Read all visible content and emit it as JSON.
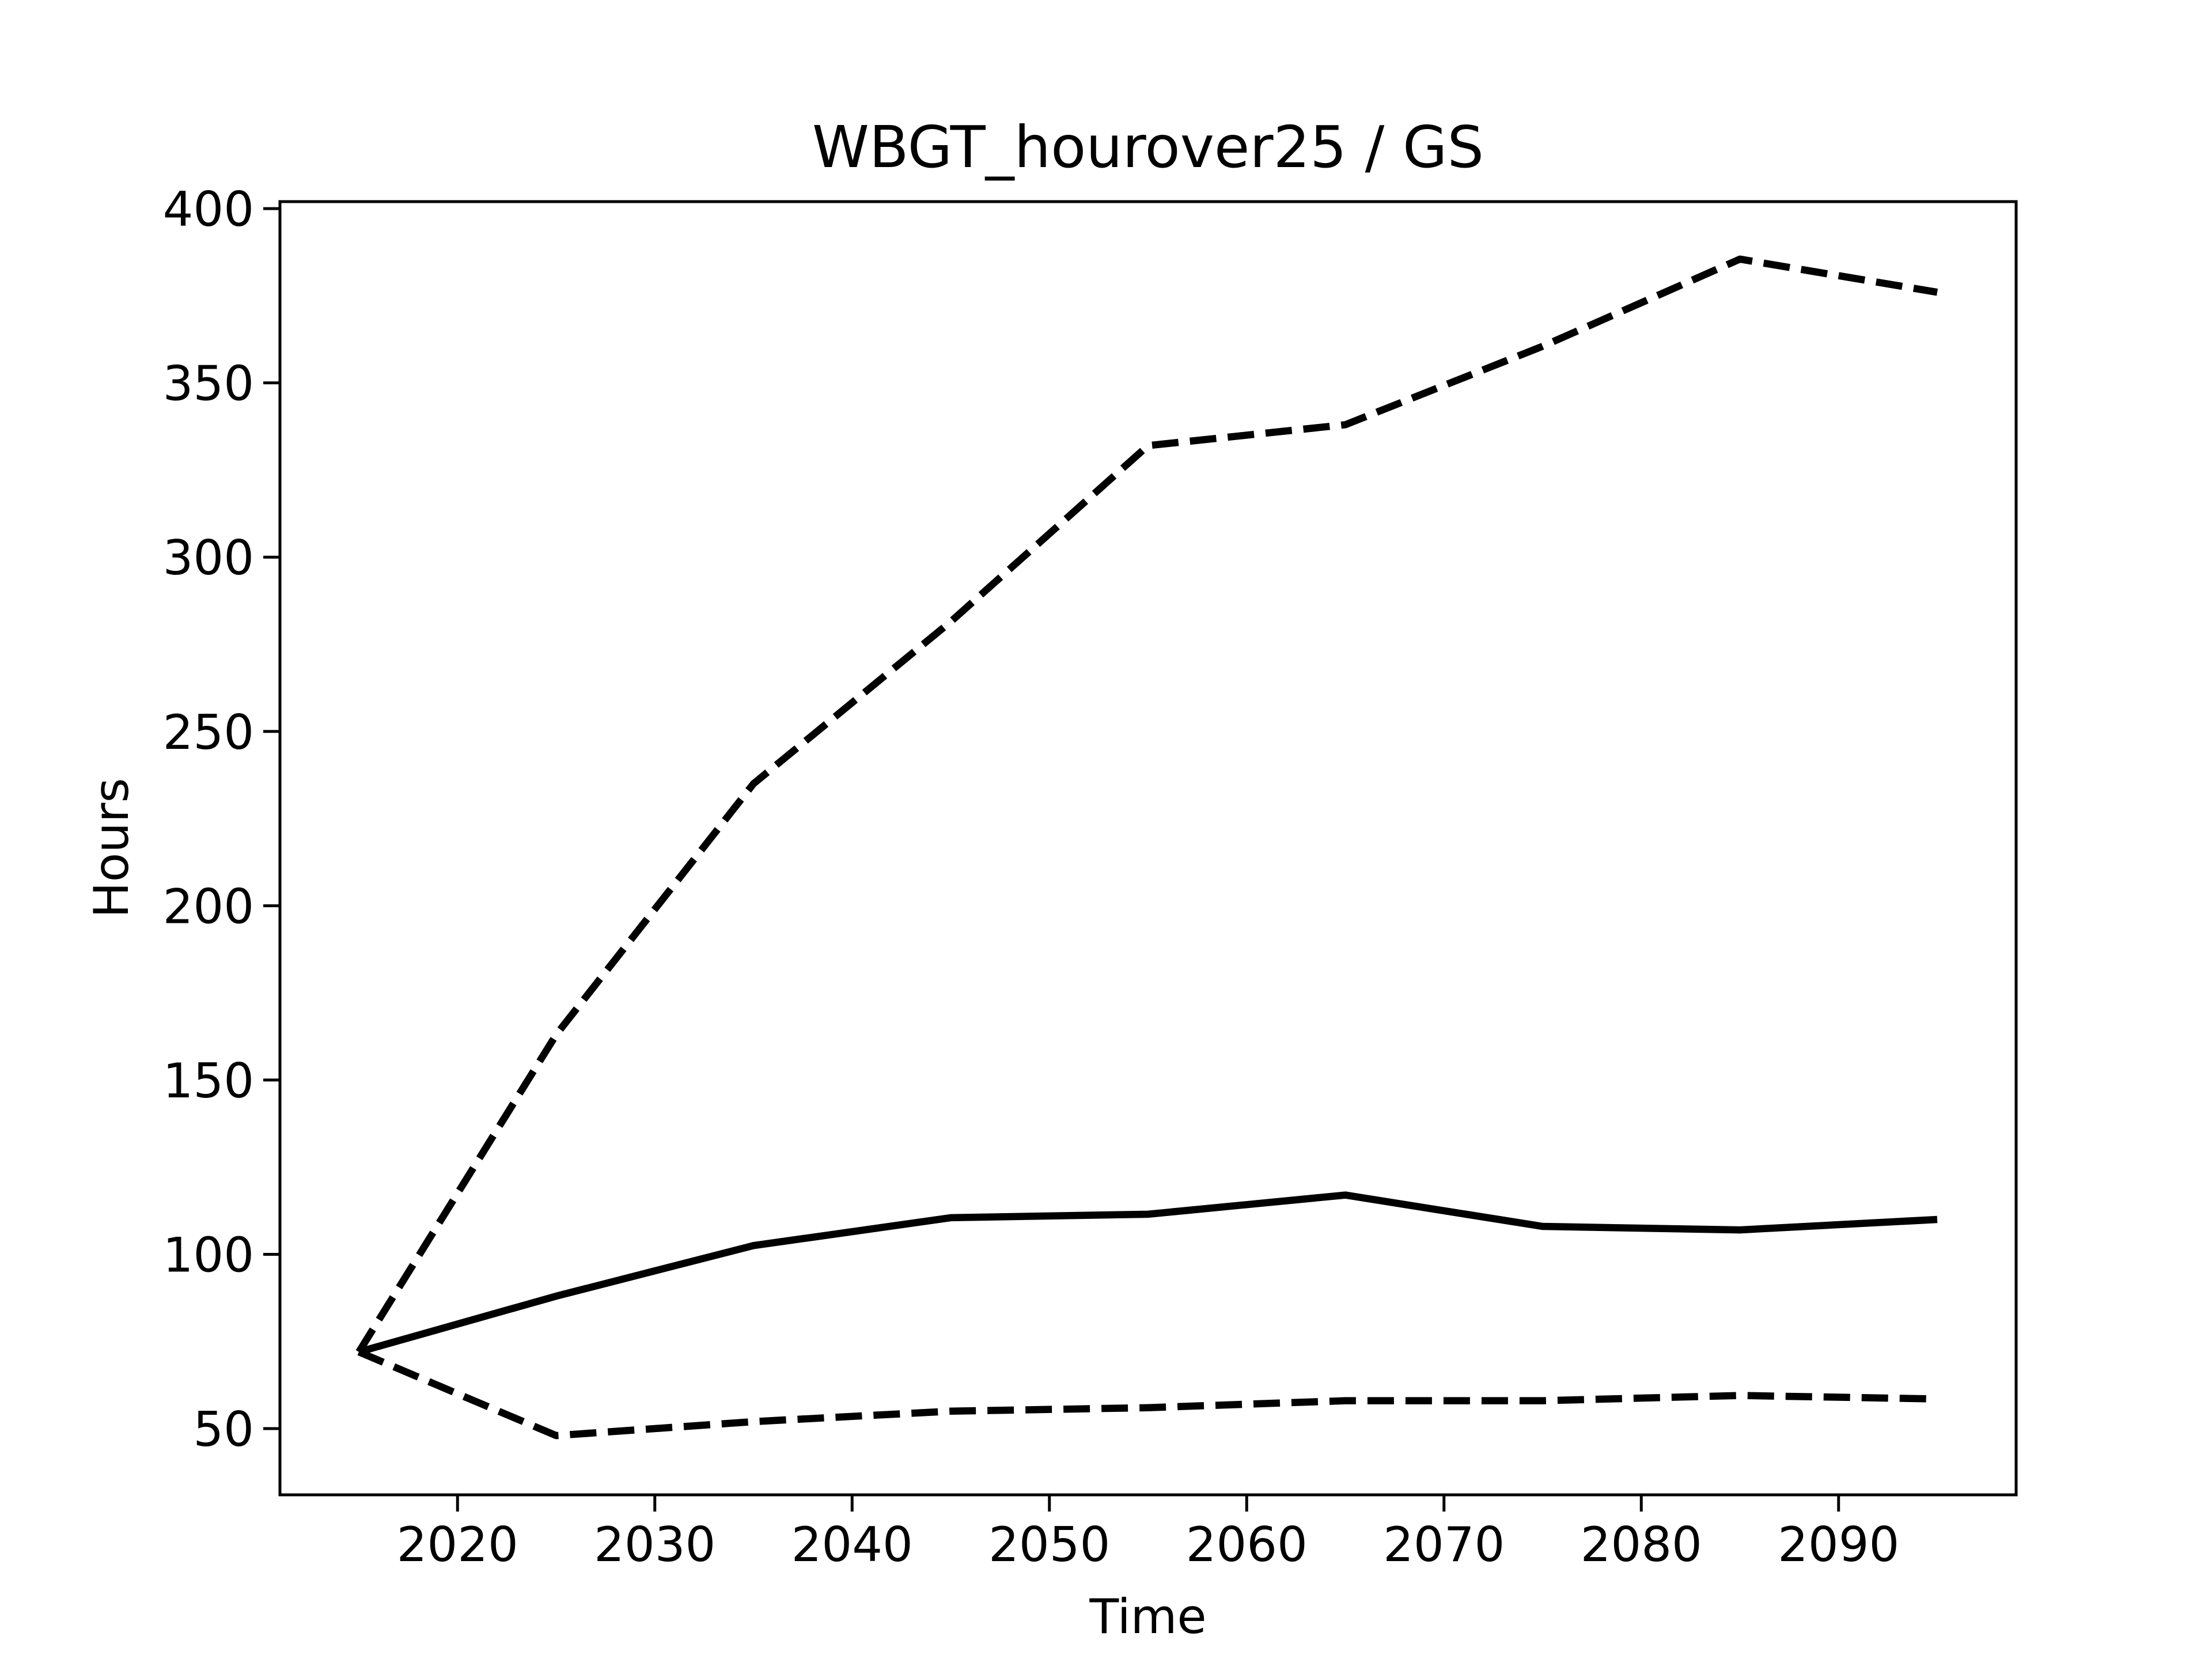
{
  "chart_data": {
    "type": "line",
    "title": "WBGT_hourover25 / GS",
    "x_label": "Time",
    "y_label": "Hours",
    "x": [
      2015,
      2025,
      2035,
      2045,
      2055,
      2065,
      2075,
      2085,
      2095
    ],
    "series": [
      {
        "color": "#000000",
        "dashed": false,
        "values": [
          72,
          88,
          102.5,
          110.5,
          111.5,
          117,
          108,
          107,
          110
        ]
      },
      {
        "color": "#000000",
        "dashed": true,
        "values": [
          72,
          163,
          235,
          281.5,
          332,
          338,
          360.5,
          385.5,
          376
        ]
      },
      {
        "color": "#000000",
        "dashed": true,
        "values": [
          72,
          48,
          52,
          55,
          56,
          58,
          58,
          59.5,
          58.5
        ]
      }
    ],
    "xlim": [
      2011,
      2099
    ],
    "xticks": [
      2020,
      2030,
      2040,
      2050,
      2060,
      2070,
      2080,
      2090
    ],
    "ylim": [
      31,
      402
    ],
    "yticks": [
      50,
      100,
      150,
      200,
      250,
      300,
      350,
      400
    ],
    "grid": false
  }
}
